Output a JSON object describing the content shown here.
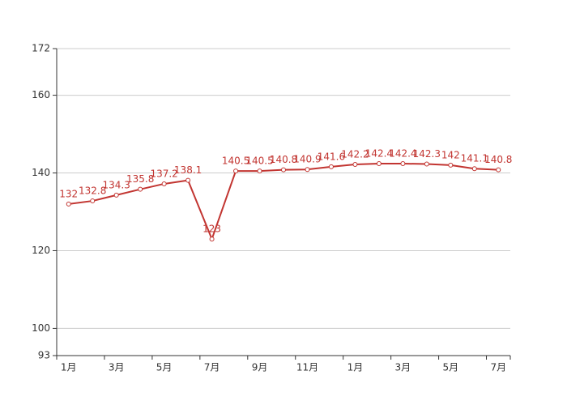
{
  "chart_data": {
    "type": "line",
    "categories": [
      "1月",
      null,
      "3月",
      null,
      "5月",
      null,
      "7月",
      null,
      "9月",
      null,
      "11月",
      null,
      "1月",
      null,
      "3月",
      null,
      "5月",
      null,
      "7月"
    ],
    "series": [
      {
        "color": "#c23531",
        "values": [
          132,
          132.8,
          134.3,
          135.8,
          137.2,
          138.1,
          123,
          140.5,
          140.5,
          140.8,
          140.9,
          141.6,
          142.2,
          142.4,
          142.4,
          142.3,
          142,
          141.1,
          140.8
        ]
      }
    ],
    "ylim": [
      93,
      172
    ],
    "yticks": [
      93,
      100,
      120,
      140,
      160,
      172
    ],
    "grid": true
  }
}
